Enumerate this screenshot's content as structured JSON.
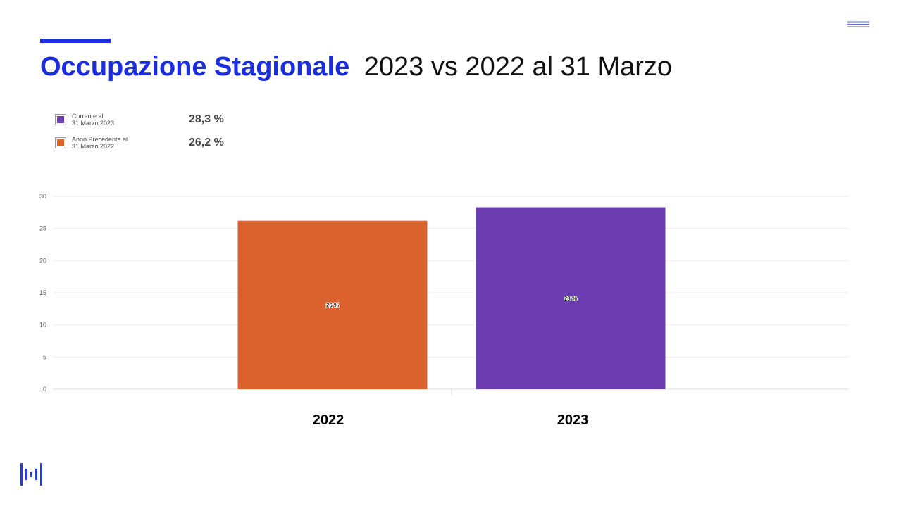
{
  "chart_data": {
    "type": "bar",
    "title_parts": [
      "Occupazione Stagionale",
      "2023 vs 2022 al 31 Marzo"
    ],
    "categories": [
      "2022",
      "2023"
    ],
    "series": [
      {
        "name": "Corrente al\n31 Marzo 2023",
        "color": "#6b3db0",
        "values": [
          null,
          28.3
        ],
        "value_labels": [
          null,
          "28 %"
        ],
        "legend_value_label": "28,3 %"
      },
      {
        "name": "Anno Precedente al\n31 Marzo 2022",
        "color": "#dc622d",
        "values": [
          26.2,
          null
        ],
        "value_labels": [
          "26 %",
          null
        ],
        "legend_value_label": "26,2 %"
      }
    ],
    "ylim": [
      0,
      30
    ],
    "yticks": [
      0,
      5,
      10,
      15,
      20,
      25,
      30
    ],
    "grid": true
  }
}
